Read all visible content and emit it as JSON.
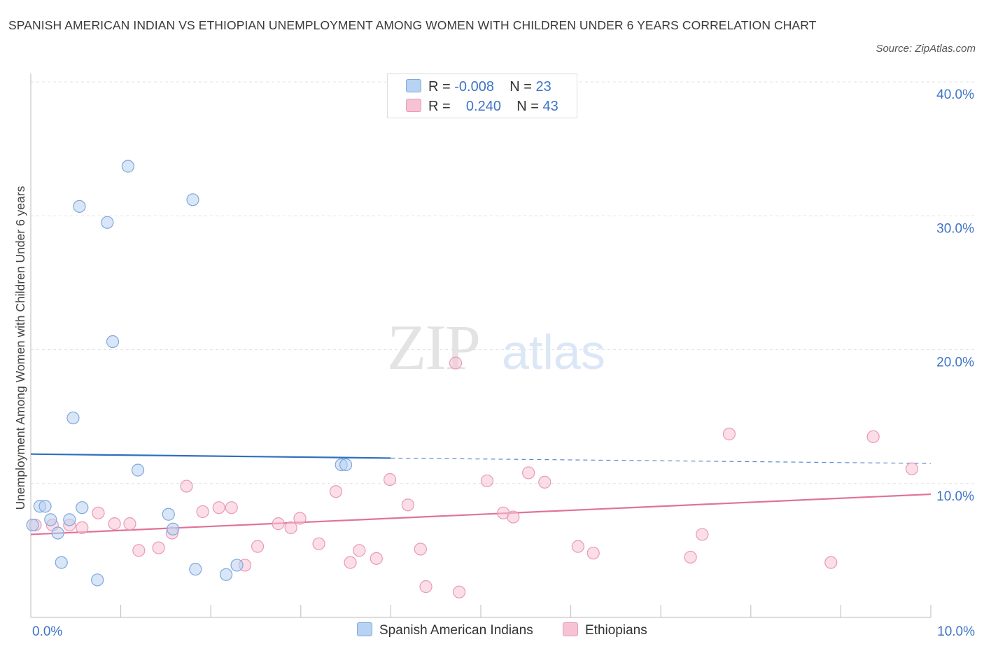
{
  "title": "SPANISH AMERICAN INDIAN VS ETHIOPIAN UNEMPLOYMENT AMONG WOMEN WITH CHILDREN UNDER 6 YEARS CORRELATION CHART",
  "source": "Source: ZipAtlas.com",
  "watermark": {
    "zip": "ZIP",
    "atlas": "atlas"
  },
  "legend": {
    "rows": [
      {
        "r_label": "R =",
        "r_value": "-0.008",
        "n_label": "N =",
        "n_value": "23"
      },
      {
        "r_label": "R =",
        "r_value": "0.240",
        "n_label": "N =",
        "n_value": "43"
      }
    ]
  },
  "bottom_legend": [
    "Spanish American Indians",
    "Ethiopians"
  ],
  "colors": {
    "blue_fill": "#b8d2f3",
    "blue_stroke": "#7fa8dc",
    "blue_line": "#2f6fc0",
    "pink_fill": "#f7c3d4",
    "pink_stroke": "#e99ab5",
    "pink_line": "#e0739a",
    "tick_label": "#3d74c6",
    "grid": "#e2e2e2"
  },
  "chart_data": {
    "type": "scatter",
    "title": "SPANISH AMERICAN INDIAN VS ETHIOPIAN UNEMPLOYMENT AMONG WOMEN WITH CHILDREN UNDER 6 YEARS CORRELATION CHART",
    "xlabel": "",
    "ylabel": "Unemployment Among Women with Children Under 6 years",
    "xlim": [
      0,
      10
    ],
    "ylim": [
      0,
      40
    ],
    "x_tick_labels": [
      "0.0%",
      "10.0%"
    ],
    "y_ticks": [
      10,
      20,
      30,
      40
    ],
    "y_tick_labels": [
      "10.0%",
      "20.0%",
      "30.0%",
      "40.0%"
    ],
    "grid": true,
    "series": [
      {
        "name": "Spanish American Indians",
        "color": "blue",
        "points": [
          [
            1.08,
            33.7
          ],
          [
            0.54,
            30.7
          ],
          [
            0.85,
            29.5
          ],
          [
            1.8,
            31.2
          ],
          [
            0.91,
            20.6
          ],
          [
            0.47,
            14.9
          ],
          [
            1.19,
            11.0
          ],
          [
            3.45,
            11.4
          ],
          [
            3.5,
            11.4
          ],
          [
            0.1,
            8.3
          ],
          [
            0.16,
            8.3
          ],
          [
            0.57,
            8.2
          ],
          [
            0.22,
            7.3
          ],
          [
            0.43,
            7.3
          ],
          [
            1.53,
            7.7
          ],
          [
            1.58,
            6.6
          ],
          [
            0.02,
            6.9
          ],
          [
            0.3,
            6.3
          ],
          [
            0.34,
            4.1
          ],
          [
            1.83,
            3.6
          ],
          [
            2.29,
            3.9
          ],
          [
            2.17,
            3.2
          ],
          [
            0.74,
            2.8
          ]
        ],
        "trend": {
          "x0": 0,
          "y0": 12.2,
          "x1": 4,
          "y1": 11.9,
          "dashed_to_x": 10,
          "dashed_to_y": 11.5
        }
      },
      {
        "name": "Ethiopians",
        "color": "pink",
        "points": [
          [
            0.05,
            6.9
          ],
          [
            0.24,
            6.9
          ],
          [
            0.43,
            6.9
          ],
          [
            0.57,
            6.7
          ],
          [
            0.75,
            7.8
          ],
          [
            0.93,
            7.0
          ],
          [
            1.1,
            7.0
          ],
          [
            1.2,
            5.0
          ],
          [
            1.42,
            5.2
          ],
          [
            1.57,
            6.3
          ],
          [
            1.73,
            9.8
          ],
          [
            1.91,
            7.9
          ],
          [
            2.09,
            8.2
          ],
          [
            2.23,
            8.2
          ],
          [
            2.38,
            3.9
          ],
          [
            2.52,
            5.3
          ],
          [
            2.75,
            7.0
          ],
          [
            2.89,
            6.7
          ],
          [
            2.99,
            7.4
          ],
          [
            3.2,
            5.5
          ],
          [
            3.39,
            9.4
          ],
          [
            3.55,
            4.1
          ],
          [
            3.65,
            5.0
          ],
          [
            3.84,
            4.4
          ],
          [
            3.99,
            10.3
          ],
          [
            4.19,
            8.4
          ],
          [
            4.33,
            5.1
          ],
          [
            4.39,
            2.3
          ],
          [
            4.72,
            19.0
          ],
          [
            4.76,
            1.9
          ],
          [
            5.07,
            10.2
          ],
          [
            5.25,
            7.8
          ],
          [
            5.36,
            7.5
          ],
          [
            5.53,
            10.8
          ],
          [
            5.71,
            10.1
          ],
          [
            6.08,
            5.3
          ],
          [
            6.25,
            4.8
          ],
          [
            7.33,
            4.5
          ],
          [
            7.46,
            6.2
          ],
          [
            7.76,
            13.7
          ],
          [
            8.89,
            4.1
          ],
          [
            9.36,
            13.5
          ],
          [
            9.79,
            11.1
          ]
        ],
        "trend": {
          "x0": 0,
          "y0": 6.2,
          "x1": 10,
          "y1": 9.2
        }
      }
    ]
  }
}
